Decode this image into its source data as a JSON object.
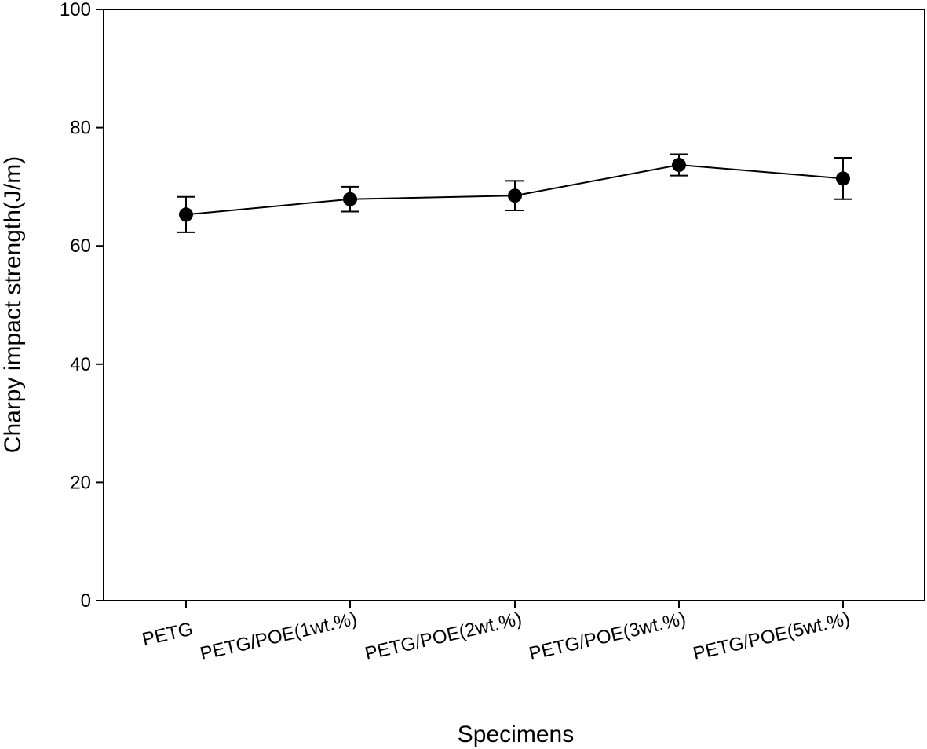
{
  "chart_data": {
    "type": "line",
    "title": "",
    "xlabel": "Specimens",
    "ylabel": "Charpy impact strength(J/m)",
    "categories": [
      "PETG",
      "PETG/POE(1wt.%)",
      "PETG/POE(2wt.%)",
      "PETG/POE(3wt.%)",
      "PETG/POE(5wt.%)"
    ],
    "series": [
      {
        "name": "Charpy impact strength",
        "values": [
          65.3,
          67.9,
          68.5,
          73.7,
          71.4
        ],
        "error": [
          3.0,
          2.1,
          2.5,
          1.8,
          3.5
        ]
      }
    ],
    "ylim": [
      0,
      100
    ],
    "yticks": [
      0,
      20,
      40,
      60,
      80,
      100
    ],
    "grid": false,
    "legend": "none",
    "color": "#000000"
  }
}
